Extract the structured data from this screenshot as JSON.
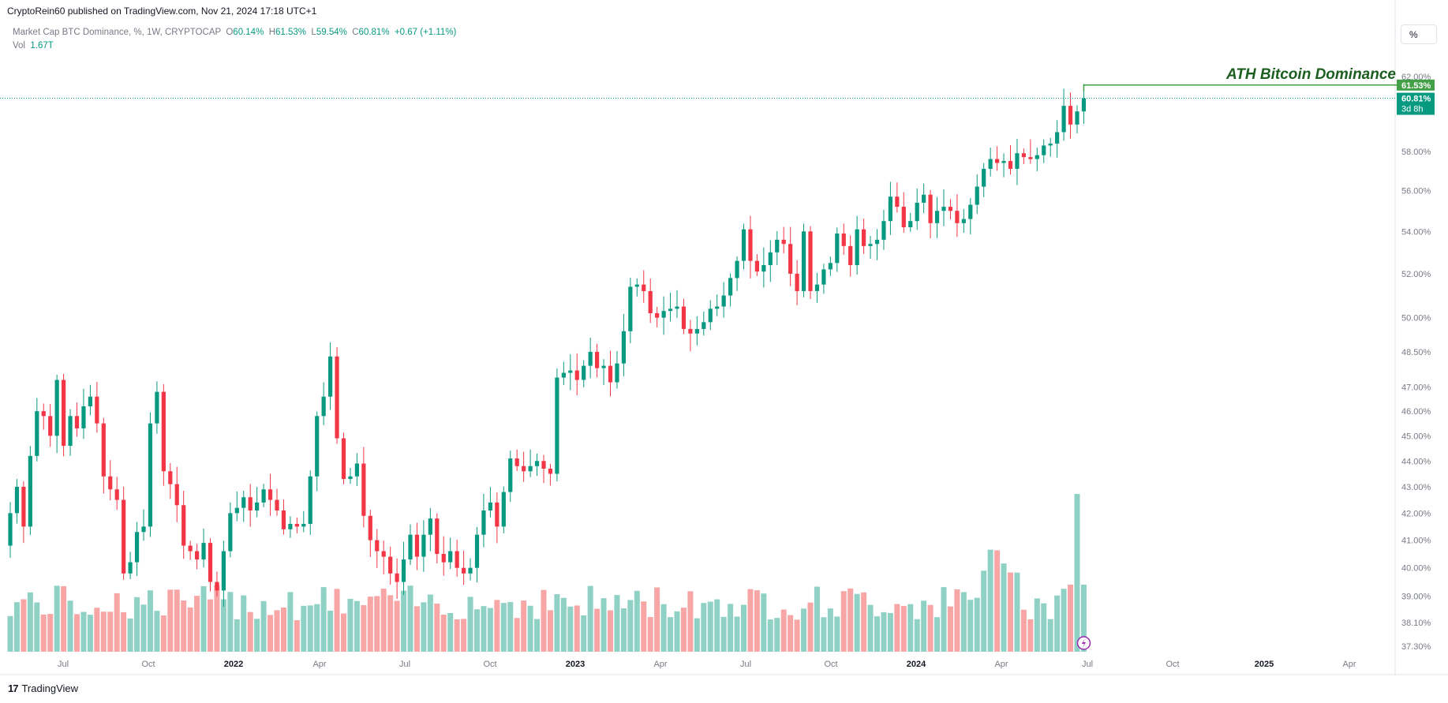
{
  "publisher": "CryptoRein60 published on TradingView.com, Nov 21, 2024 17:18 UTC+1",
  "legend": {
    "symbol": "Market Cap BTC Dominance, %, 1W, CRYPTOCAP",
    "o_label": "O",
    "o_value": "60.14%",
    "h_label": "H",
    "h_value": "61.53%",
    "l_label": "L",
    "l_value": "59.54%",
    "c_label": "C",
    "c_value": "60.81%",
    "change": "+0.67 (+1.11%)",
    "vol_label": "Vol",
    "vol_value": "1.67T"
  },
  "scale_button": "%",
  "footer_logo": "TradingView",
  "colors": {
    "up": "#089981",
    "down": "#f23645",
    "vol_up": "#8fd1c5",
    "vol_down": "#f7a5a5",
    "annotation": "#1b5e20",
    "high_label": "#43a047"
  },
  "chart_data": {
    "type": "candlestick",
    "title": "Market Cap BTC Dominance, %, 1W, CRYPTOCAP",
    "y_scale": "log",
    "y_ticks": [
      "62.00%",
      "61.53%",
      "60.81%",
      "58.00%",
      "56.00%",
      "54.00%",
      "52.00%",
      "50.00%",
      "48.50%",
      "47.00%",
      "46.00%",
      "45.00%",
      "44.00%",
      "43.00%",
      "42.00%",
      "41.00%",
      "40.00%",
      "39.00%",
      "38.10%",
      "37.30%"
    ],
    "x_ticks": [
      "Jul",
      "Oct",
      "2022",
      "Apr",
      "Jul",
      "Oct",
      "2023",
      "Apr",
      "Jul",
      "Oct",
      "2024",
      "Apr",
      "Jul",
      "Oct",
      "2025",
      "Apr"
    ],
    "close_series": [
      42,
      43,
      41.5,
      44.2,
      46,
      45.8,
      45,
      47.3,
      44.6,
      45.8,
      45.3,
      46.2,
      46.6,
      45.5,
      43.4,
      42.9,
      42.5,
      39.8,
      40.2,
      41.3,
      41.5,
      45.5,
      46.8,
      43.6,
      43.1,
      42.3,
      40.8,
      40.6,
      40.3,
      40.9,
      39.5,
      39.2,
      40.6,
      42,
      42.2,
      42.6,
      42.1,
      42.4,
      42.9,
      42.5,
      42.1,
      41.4,
      41.6,
      41.5,
      41.6,
      43.4,
      45.8,
      46.6,
      48.3,
      44.9,
      43.3,
      43.4,
      43.9,
      41.9,
      41,
      40.6,
      40.4,
      39.8,
      39.5,
      40.3,
      41.2,
      40.4,
      41.2,
      41.8,
      40.5,
      40.2,
      40.6,
      40,
      39.8,
      40,
      41.2,
      42.1,
      42.4,
      41.5,
      42.8,
      44.1,
      43.8,
      43.6,
      43.8,
      44,
      43.7,
      43.5,
      47.4,
      47.6,
      47.7,
      47.3,
      47.9,
      48.5,
      47.8,
      47.9,
      47.2,
      48,
      49.4,
      51.4,
      51.5,
      51.2,
      50.2,
      50,
      50.3,
      50.4,
      50.5,
      49.5,
      49.3,
      49.5,
      49.8,
      50.4,
      50.5,
      51,
      51.8,
      52.6,
      54.1,
      52.6,
      52.1,
      52.4,
      53,
      53.6,
      53.4,
      52,
      51.2,
      54,
      51.2,
      51.5,
      52.2,
      52.5,
      53.9,
      53.3,
      52.4,
      54.1,
      53.3,
      53.4,
      53.6,
      54.5,
      55.7,
      55.2,
      54.2,
      54.5,
      55.4,
      55.8,
      54.4,
      55,
      55.2,
      55,
      54.4,
      54.6,
      55.3,
      56.2,
      57.1,
      57.6,
      57.4,
      57.5,
      57.1,
      57.9,
      57.7,
      57.6,
      57.8,
      58.3,
      58.4,
      59,
      60.4,
      59.4,
      60.1,
      60.8
    ],
    "annotation": "ATH Bitcoin Dominance",
    "all_time_high": 61.53,
    "last_close": 60.81,
    "countdown": "3d 8h"
  }
}
